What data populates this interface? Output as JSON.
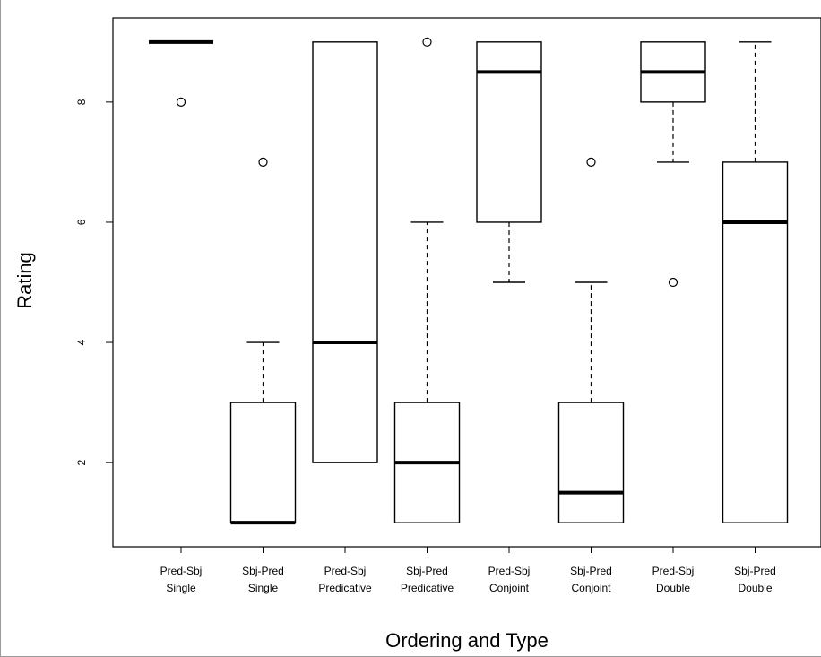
{
  "chart_data": {
    "type": "boxplot",
    "xlabel": "Ordering and Type",
    "ylabel": "Rating",
    "ylim": [
      0.6,
      9.4
    ],
    "yticks": [
      2,
      4,
      6,
      8
    ],
    "grid": false,
    "categories": [
      [
        "Pred-Sbj",
        "Single"
      ],
      [
        "Sbj-Pred",
        "Single"
      ],
      [
        "Pred-Sbj",
        "Predicative"
      ],
      [
        "Sbj-Pred",
        "Predicative"
      ],
      [
        "Pred-Sbj",
        "Conjoint"
      ],
      [
        "Sbj-Pred",
        "Conjoint"
      ],
      [
        "Pred-Sbj",
        "Double"
      ],
      [
        "Sbj-Pred",
        "Double"
      ]
    ],
    "boxes": [
      {
        "whisker_low": 9,
        "q1": 9,
        "median": 9,
        "q3": 9,
        "whisker_high": 9,
        "outliers": [
          8
        ]
      },
      {
        "whisker_low": 1,
        "q1": 1,
        "median": 1,
        "q3": 3,
        "whisker_high": 4,
        "outliers": [
          7
        ]
      },
      {
        "whisker_low": 2,
        "q1": 2,
        "median": 4,
        "q3": 9,
        "whisker_high": 9,
        "outliers": []
      },
      {
        "whisker_low": 1,
        "q1": 1,
        "median": 2,
        "q3": 3,
        "whisker_high": 6,
        "outliers": [
          9
        ]
      },
      {
        "whisker_low": 5,
        "q1": 6,
        "median": 8.5,
        "q3": 9,
        "whisker_high": 9,
        "outliers": []
      },
      {
        "whisker_low": 1,
        "q1": 1,
        "median": 1.5,
        "q3": 3,
        "whisker_high": 5,
        "outliers": [
          7
        ]
      },
      {
        "whisker_low": 7,
        "q1": 8,
        "median": 8.5,
        "q3": 9,
        "whisker_high": 9,
        "outliers": [
          5
        ]
      },
      {
        "whisker_low": 1,
        "q1": 1,
        "median": 6,
        "q3": 7,
        "whisker_high": 9,
        "outliers": []
      }
    ]
  }
}
